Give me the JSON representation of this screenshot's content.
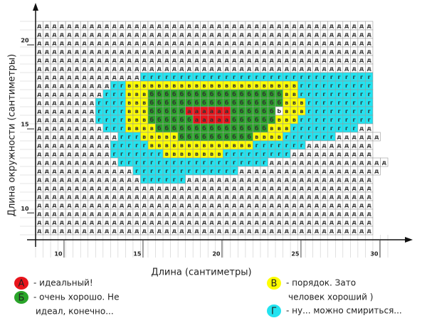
{
  "chart_data": {
    "type": "grid",
    "xlabel": "Длина (сантиметры)",
    "ylabel": "Длина окружности (сантиметры)",
    "xlim": [
      8.2,
      30.5
    ],
    "ylim": [
      8.7,
      21.4
    ],
    "xticks": [
      10,
      15,
      20,
      25,
      30
    ],
    "yticks": [
      10,
      15,
      20
    ],
    "rows": [
      "ддддддддддддддддддддддддддддддддддддддддддддд",
      "ддддддддддддддддддддддддддддддддддддддддддддд",
      "ддддддддддддддддддддддддддддддддддддддддддддд",
      "ддддддддддддддддддддддддддддддддддддддддддддд",
      "ддддддддддддддддддддддддддддддддддддддддддддд",
      "ддддддддддддддддддддддддддддддддддддддддддддд",
      "ддддддддддддддггггггггггггггггггггггггггггггг",
      "ддддддддддггвввввввввввввввввввввввгггггггггг",
      "дддддддддгггвввббббббббббббббббббввгггггггггг",
      "ддддддддггггвввббббббббббббббббббвввггггггггг",
      "ддддддддггггвввбббббааааааббббббbвввггггггггг",
      "ддддддддггггвввббббббаааааббббббвввгггггггггг",
      "дддддддддгггввввбббббббббббббббвввгггггггггдд",
      "дддддддддддгггвввввббббббббббввввгггггггдддддд",
      "ддддддддддгггггввввввввввввввгггггггддддддддд",
      "ддддддддддгггггггввввввввгггггггггддддддддддд",
      "дддддддддддггггггггггггггггггггдддддддддддддддд",
      "дддддддддддддггггггггггггггддддддддддддддддддд",
      "ддддддддддддддггггггддддддддддддддддддддддддд",
      "ддддддддддддддддддддддддддддддддддддддддддддд",
      "ддддддддддддддддддддддддддддддддддддддддддддд",
      "ддддддддддддддддддддддддддддддддддддддддддддд",
      "ддддддддддддддддддддддддддддддддддддддддддддд",
      "ддддддддддддддддддддддддддддддддддддддддддддд",
      "ддддддддддддддддддддддддддддддддддддддддддддд"
    ],
    "legend": [
      {
        "letter": "А",
        "color": "#e8141b",
        "lines": [
          "- идеальный!"
        ]
      },
      {
        "letter": "Б",
        "color": "#2aa52a",
        "lines": [
          "- очень хорошо. Не",
          "идеал, конечно..."
        ]
      },
      {
        "letter": "В",
        "color": "#ffff00",
        "lines": [
          "- порядок. Зато",
          "человек хороший )"
        ]
      },
      {
        "letter": "Г",
        "color": "#22e3f0",
        "lines": [
          "- ну... можно смириться..."
        ]
      }
    ]
  }
}
